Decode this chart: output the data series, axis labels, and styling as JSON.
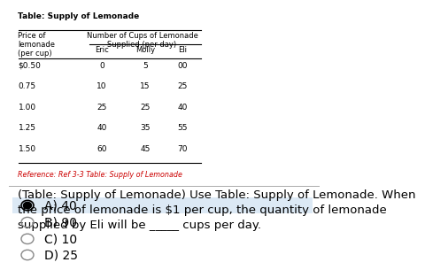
{
  "table_title": "Table: Supply of Lemonade",
  "sub_headers": [
    "Eric",
    "Molly",
    "Eli"
  ],
  "prices": [
    "$0.50",
    "0.75",
    "1.00",
    "1.25",
    "1.50"
  ],
  "eric_vals": [
    "0",
    "10",
    "25",
    "40",
    "60"
  ],
  "molly_vals": [
    "5",
    "15",
    "25",
    "35",
    "45"
  ],
  "eli_vals": [
    "00",
    "25",
    "40",
    "55",
    "70"
  ],
  "reference": "Reference: Ref 3-3 Table: Supply of Lemonade",
  "question": "(Table: Supply of Lemonade) Use Table: Supply of Lemonade. When\nthe price of lemonade is $1 per cup, the quantity of lemonade\nsupplied by Eli will be _____ cups per day.",
  "choices": [
    "A) 40",
    "B) 90",
    "C) 10",
    "D) 25"
  ],
  "correct_index": 0,
  "bg_color": "#ffffff",
  "selected_bg": "#dce9f5",
  "reference_color": "#cc0000",
  "text_color": "#000000",
  "choice_font_size": 10,
  "question_font_size": 9.5,
  "table_font_size": 6.5
}
